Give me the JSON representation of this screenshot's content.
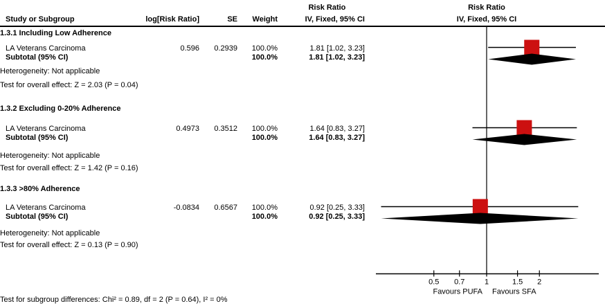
{
  "columns": {
    "study": "Study or Subgroup",
    "log_rr": "log[Risk Ratio]",
    "se": "SE",
    "weight": "Weight",
    "effect_text_line1": "Risk Ratio",
    "effect_text_line2": "IV, Fixed, 95% CI",
    "effect_plot_line1": "Risk Ratio",
    "effect_plot_line2": "IV, Fixed, 95% CI"
  },
  "subgroups": [
    {
      "heading": "1.3.1 Including Low Adherence",
      "study": {
        "name": "LA Veterans Carcinoma",
        "log_rr": "0.596",
        "se": "0.2939",
        "weight": "100.0%",
        "ci": "1.81 [1.02, 3.23]"
      },
      "subtotal": {
        "label": "Subtotal (95% CI)",
        "weight": "100.0%",
        "ci": "1.81 [1.02, 3.23]"
      },
      "heterogeneity": "Heterogeneity: Not applicable",
      "overall_effect": "Test for overall effect: Z = 2.03 (P = 0.04)"
    },
    {
      "heading": "1.3.2 Excluding 0-20% Adherence",
      "study": {
        "name": "LA Veterans Carcinoma",
        "log_rr": "0.4973",
        "se": "0.3512",
        "weight": "100.0%",
        "ci": "1.64 [0.83, 3.27]"
      },
      "subtotal": {
        "label": "Subtotal (95% CI)",
        "weight": "100.0%",
        "ci": "1.64 [0.83, 3.27]"
      },
      "heterogeneity": "Heterogeneity: Not applicable",
      "overall_effect": "Test for overall effect: Z = 1.42 (P = 0.16)"
    },
    {
      "heading": "1.3.3 >80% Adherence",
      "study": {
        "name": "LA Veterans Carcinoma",
        "log_rr": "-0.0834",
        "se": "0.6567",
        "weight": "100.0%",
        "ci": "0.92 [0.25, 3.33]"
      },
      "subtotal": {
        "label": "Subtotal (95% CI)",
        "weight": "100.0%",
        "ci": "0.92 [0.25, 3.33]"
      },
      "heterogeneity": "Heterogeneity: Not applicable",
      "overall_effect": "Test for overall effect: Z = 0.13 (P = 0.90)"
    }
  ],
  "footer": {
    "subgroup_differences": "Test for subgroup differences: Chi² = 0.89, df = 2 (P = 0.64), I² = 0%"
  },
  "chart_data": {
    "type": "forest",
    "scale": "log",
    "effect_measure": "Risk Ratio",
    "method": "IV, Fixed, 95% CI",
    "null_line": 1,
    "axis_ticks": [
      0.5,
      0.7,
      1,
      1.5,
      2
    ],
    "xlim": [
      0.23,
      4.3
    ],
    "marker_color": "#CC1010",
    "diamond_color": "#000000",
    "favours_left": "Favours PUFA",
    "favours_right": "Favours SFA",
    "groups": [
      {
        "label": "1.3.1 Including Low Adherence",
        "studies": [
          {
            "name": "LA Veterans Carcinoma",
            "est": 1.81,
            "lo": 1.02,
            "hi": 3.23,
            "weight": 100.0
          }
        ],
        "subtotal": {
          "est": 1.81,
          "lo": 1.02,
          "hi": 3.23
        }
      },
      {
        "label": "1.3.2 Excluding 0-20% Adherence",
        "studies": [
          {
            "name": "LA Veterans Carcinoma",
            "est": 1.64,
            "lo": 0.83,
            "hi": 3.27,
            "weight": 100.0
          }
        ],
        "subtotal": {
          "est": 1.64,
          "lo": 0.83,
          "hi": 3.27
        }
      },
      {
        "label": "1.3.3 >80% Adherence",
        "studies": [
          {
            "name": "LA Veterans Carcinoma",
            "est": 0.92,
            "lo": 0.25,
            "hi": 3.33,
            "weight": 100.0
          }
        ],
        "subtotal": {
          "est": 0.92,
          "lo": 0.25,
          "hi": 3.33
        }
      }
    ]
  }
}
